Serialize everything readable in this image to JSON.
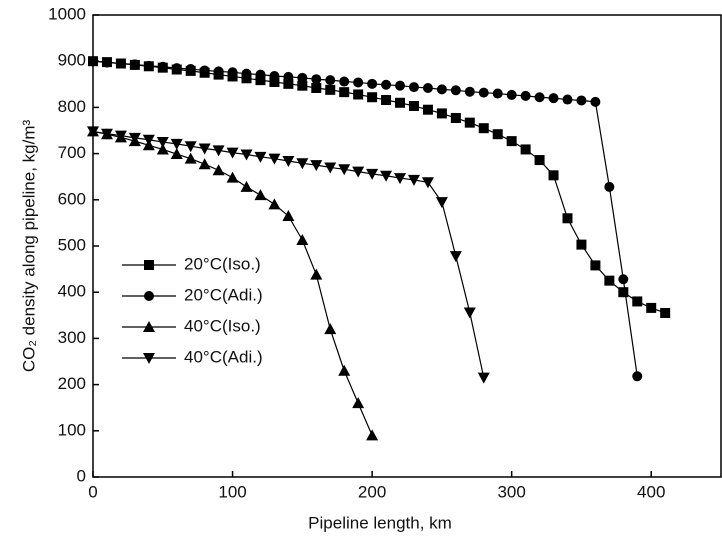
{
  "chart_data": {
    "type": "line",
    "x_label": "Pipeline length, km",
    "y_label": "CO₂ density along pipeline, kg/m³",
    "xlim": [
      0,
      450
    ],
    "ylim": [
      0,
      1000
    ],
    "xticks": [
      0,
      100,
      200,
      300,
      400
    ],
    "yticks": [
      0,
      100,
      200,
      300,
      400,
      500,
      600,
      700,
      800,
      900,
      1000
    ],
    "series": [
      {
        "name": "20°C(Iso.)",
        "color": "#000000",
        "marker": "square",
        "x": [
          0,
          10,
          20,
          30,
          40,
          50,
          60,
          70,
          80,
          90,
          100,
          110,
          120,
          130,
          140,
          150,
          160,
          170,
          180,
          190,
          200,
          210,
          220,
          230,
          240,
          250,
          260,
          270,
          280,
          290,
          300,
          310,
          320,
          330,
          340,
          350,
          360,
          370,
          380,
          390,
          400,
          410
        ],
        "values": [
          900,
          898,
          895,
          892,
          889,
          886,
          882,
          879,
          875,
          871,
          867,
          863,
          859,
          855,
          851,
          847,
          842,
          838,
          833,
          828,
          822,
          816,
          810,
          803,
          795,
          787,
          777,
          767,
          755,
          742,
          727,
          709,
          686,
          653,
          560,
          503,
          458,
          425,
          400,
          380,
          366,
          355
        ]
      },
      {
        "name": "20°C(Adi.)",
        "color": "#000000",
        "marker": "circle",
        "x": [
          0,
          10,
          20,
          30,
          40,
          50,
          60,
          70,
          80,
          90,
          100,
          110,
          120,
          130,
          140,
          150,
          160,
          170,
          180,
          190,
          200,
          210,
          220,
          230,
          240,
          250,
          260,
          270,
          280,
          290,
          300,
          310,
          320,
          330,
          340,
          350,
          360,
          370,
          380,
          390
        ],
        "values": [
          900,
          897,
          895,
          893,
          890,
          888,
          885,
          883,
          880,
          878,
          876,
          873,
          871,
          868,
          866,
          864,
          861,
          859,
          856,
          854,
          851,
          849,
          847,
          844,
          842,
          839,
          837,
          834,
          832,
          830,
          827,
          825,
          822,
          820,
          817,
          815,
          812,
          628,
          428,
          218
        ]
      },
      {
        "name": "40°C(Iso.)",
        "color": "#000000",
        "marker": "triangle-up",
        "x": [
          0,
          10,
          20,
          30,
          40,
          50,
          60,
          70,
          80,
          90,
          100,
          110,
          120,
          130,
          140,
          150,
          160,
          170,
          180,
          190,
          200
        ],
        "values": [
          748,
          742,
          735,
          727,
          718,
          709,
          699,
          689,
          677,
          664,
          648,
          628,
          610,
          590,
          565,
          513,
          438,
          320,
          230,
          160,
          90
        ]
      },
      {
        "name": "40°C(Adi.)",
        "color": "#000000",
        "marker": "triangle-down",
        "x": [
          0,
          10,
          20,
          30,
          40,
          50,
          60,
          70,
          80,
          90,
          100,
          110,
          120,
          130,
          140,
          150,
          160,
          170,
          180,
          190,
          200,
          210,
          220,
          230,
          240,
          250,
          260,
          270,
          280
        ],
        "values": [
          748,
          743,
          739,
          734,
          730,
          725,
          721,
          716,
          711,
          707,
          702,
          698,
          693,
          689,
          684,
          679,
          675,
          670,
          666,
          661,
          656,
          652,
          647,
          643,
          638,
          595,
          478,
          356,
          215
        ]
      }
    ]
  }
}
